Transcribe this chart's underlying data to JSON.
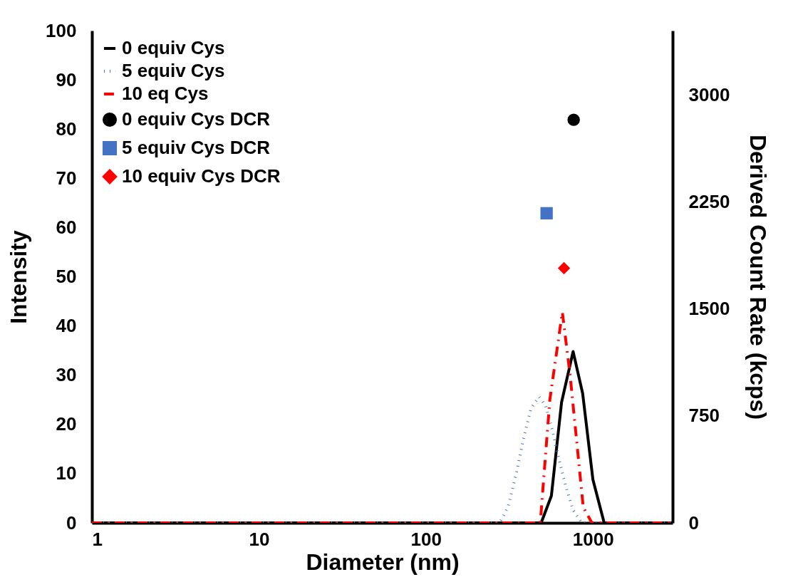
{
  "chart_data": {
    "type": "line",
    "xlabel": "Diameter (nm)",
    "ylabel": "Intensity",
    "y2label": "Derived Count Rate (kcps)",
    "log": "x",
    "xlim": [
      1,
      3000
    ],
    "xticks": [
      1,
      10,
      100,
      1000
    ],
    "ylim": [
      0,
      100
    ],
    "yticks": [
      0,
      10,
      20,
      30,
      40,
      50,
      60,
      70,
      80,
      90,
      100
    ],
    "y2lim": [
      0,
      3450
    ],
    "y2ticks": [
      0,
      750,
      1500,
      2250,
      3000
    ],
    "grid": false,
    "legend": "top left",
    "series": [
      {
        "name": "0 equiv Cys",
        "line_style": "solid",
        "color": "#000000",
        "x": [
          1,
          490,
          564,
          649,
          761,
          868,
          1000,
          1168,
          3000
        ],
        "values": [
          0,
          0,
          5.5,
          24.5,
          34.8,
          26.3,
          8.8,
          0,
          0
        ]
      },
      {
        "name": "5 equiv Cys",
        "line_style": "dotted",
        "color": "#4472c4",
        "x": [
          1,
          277,
          310,
          349,
          385,
          426,
          475,
          520,
          575,
          623,
          689,
          761,
          858,
          3000
        ],
        "values": [
          0,
          0,
          3.2,
          10.3,
          17.3,
          23.3,
          25.6,
          23.9,
          18.5,
          13.2,
          7.3,
          2.6,
          0,
          0
        ]
      },
      {
        "name": "10 eq Cys",
        "line_style": "dashed",
        "color": "#ff0000",
        "x": [
          1,
          484,
          552,
          656,
          731,
          808,
          875,
          986,
          3000
        ],
        "values": [
          0,
          0,
          25.0,
          42.8,
          29.8,
          15.0,
          3.2,
          0,
          0
        ]
      },
      {
        "name": "0 equiv Cys DCR",
        "type": "scatter",
        "axis": "y2",
        "marker": "circle",
        "color": "#000000",
        "x": [
          767
        ],
        "values": [
          2825
        ]
      },
      {
        "name": "5 equiv Cys DCR",
        "type": "scatter",
        "axis": "y2",
        "marker": "square",
        "color": "#4472c4",
        "x": [
          528
        ],
        "values": [
          2170
        ]
      },
      {
        "name": "10 equiv Cys DCR",
        "type": "scatter",
        "axis": "y2",
        "marker": "diamond",
        "color": "#ff0000",
        "x": [
          671
        ],
        "values": [
          1785
        ]
      }
    ]
  }
}
